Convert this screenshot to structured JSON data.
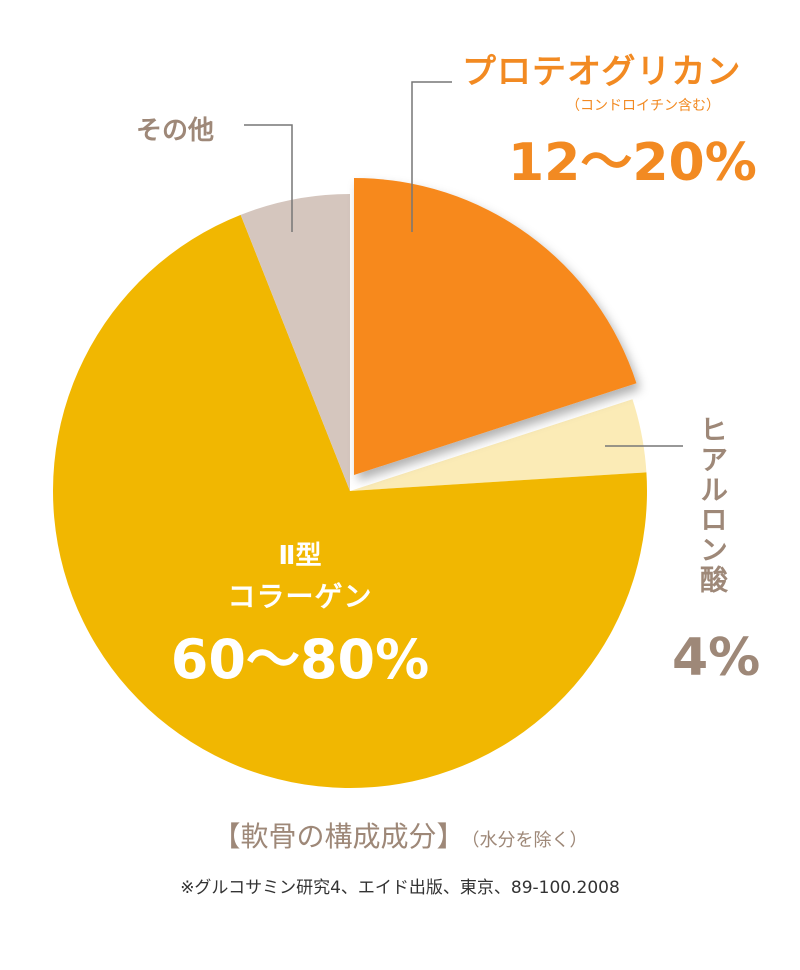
{
  "chart_data": {
    "type": "pie",
    "title": "",
    "slices": [
      {
        "name": "プロテオグリカン",
        "note": "（コンドロイチン含む）",
        "value_label": "12〜20%",
        "value": 20,
        "color": "#f7891f",
        "exploded": true
      },
      {
        "name": "ヒアルロン酸",
        "value_label": "4%",
        "value": 4,
        "color": "#fbebb6"
      },
      {
        "name_type": "Ⅱ型",
        "name": "コラーゲン",
        "value_label": "60〜80%",
        "value": 70,
        "color": "#f1b701"
      },
      {
        "name": "その他",
        "value_label": "",
        "value": 6,
        "color": "#d5c6be"
      }
    ],
    "legend": "none"
  },
  "caption": {
    "main": "【軟骨の構成成分】",
    "sub": "（水分を除く）"
  },
  "source": "※グルコサミン研究4、エイド出版、東京、89-100.2008"
}
